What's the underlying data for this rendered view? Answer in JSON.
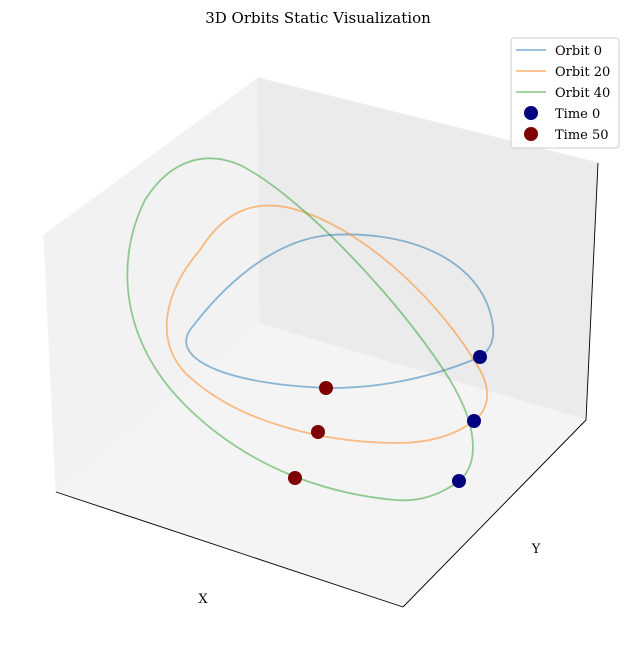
{
  "chart_data": {
    "type": "line",
    "projection": "3d",
    "title": "3D Orbits Static Visualization",
    "xlabel": "X",
    "ylabel": "Y",
    "zlabel": "",
    "ticks_visible": false,
    "grid": false,
    "legend_position": "top-right",
    "series": [
      {
        "name": "Orbit 0",
        "color": "#1f77b4",
        "alpha": 0.5,
        "kind": "line"
      },
      {
        "name": "Orbit 20",
        "color": "#ff7f0e",
        "alpha": 0.5,
        "kind": "line"
      },
      {
        "name": "Orbit 40",
        "color": "#2ca02c",
        "alpha": 0.5,
        "kind": "line"
      }
    ],
    "markers": [
      {
        "name": "Time 0",
        "color": "#00007f",
        "kind": "scatter"
      },
      {
        "name": "Time 50",
        "color": "#7f0000",
        "kind": "scatter"
      }
    ]
  }
}
